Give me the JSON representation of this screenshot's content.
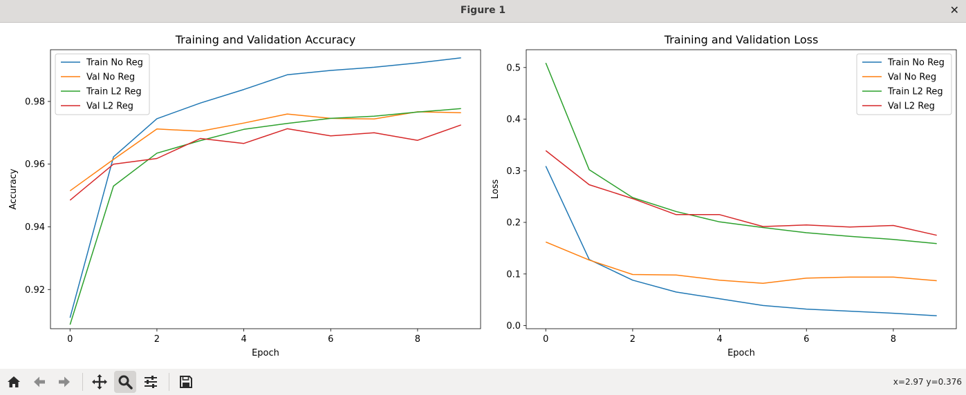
{
  "window": {
    "title": "Figure 1",
    "close_label": "✕"
  },
  "toolbar": {
    "buttons": [
      {
        "name": "home-button",
        "icon": "home-icon"
      },
      {
        "name": "back-button",
        "icon": "arrow-left-icon"
      },
      {
        "name": "forward-button",
        "icon": "arrow-right-icon"
      },
      {
        "name": "pan-button",
        "icon": "move-icon"
      },
      {
        "name": "zoom-button",
        "icon": "zoom-icon"
      },
      {
        "name": "configure-button",
        "icon": "sliders-icon"
      },
      {
        "name": "save-button",
        "icon": "save-icon"
      }
    ],
    "status": "x=2.97 y=0.376"
  },
  "colors": {
    "blue": "#1f77b4",
    "orange": "#ff7f0e",
    "green": "#2ca02c",
    "red": "#d62728"
  },
  "chart_data": [
    {
      "type": "line",
      "title": "Training and Validation Accuracy",
      "xlabel": "Epoch",
      "ylabel": "Accuracy",
      "xlim": [
        -0.45,
        9.45
      ],
      "ylim": [
        0.9075,
        0.9965
      ],
      "xticks": [
        0,
        2,
        4,
        6,
        8
      ],
      "yticks": [
        0.92,
        0.94,
        0.96,
        0.98
      ],
      "ytick_labels": [
        "0.92",
        "0.94",
        "0.96",
        "0.98"
      ],
      "legend": "upper left",
      "x": [
        0,
        1,
        2,
        3,
        4,
        5,
        6,
        7,
        8,
        9
      ],
      "series": [
        {
          "name": "Train No Reg",
          "color": "#1f77b4",
          "values": [
            0.911,
            0.9623,
            0.9745,
            0.9795,
            0.9838,
            0.9885,
            0.9899,
            0.9909,
            0.9923,
            0.9939
          ]
        },
        {
          "name": "Val No Reg",
          "color": "#ff7f0e",
          "values": [
            0.9515,
            0.9615,
            0.9712,
            0.9705,
            0.9731,
            0.976,
            0.9746,
            0.9744,
            0.9767,
            0.9764
          ]
        },
        {
          "name": "Train L2 Reg",
          "color": "#2ca02c",
          "values": [
            0.9088,
            0.953,
            0.9635,
            0.9675,
            0.9711,
            0.973,
            0.9746,
            0.9753,
            0.9766,
            0.9777
          ]
        },
        {
          "name": "Val L2 Reg",
          "color": "#d62728",
          "values": [
            0.9485,
            0.96,
            0.9618,
            0.9682,
            0.9666,
            0.9713,
            0.969,
            0.97,
            0.9676,
            0.9725
          ]
        }
      ]
    },
    {
      "type": "line",
      "title": "Training and Validation Loss",
      "xlabel": "Epoch",
      "ylabel": "Loss",
      "xlim": [
        -0.45,
        9.45
      ],
      "ylim": [
        -0.006,
        0.5345
      ],
      "xticks": [
        0,
        2,
        4,
        6,
        8
      ],
      "yticks": [
        0.0,
        0.1,
        0.2,
        0.3,
        0.4,
        0.5
      ],
      "ytick_labels": [
        "0.0",
        "0.1",
        "0.2",
        "0.3",
        "0.4",
        "0.5"
      ],
      "legend": "upper right",
      "x": [
        0,
        1,
        2,
        3,
        4,
        5,
        6,
        7,
        8,
        9
      ],
      "series": [
        {
          "name": "Train No Reg",
          "color": "#1f77b4",
          "values": [
            0.309,
            0.128,
            0.088,
            0.065,
            0.052,
            0.039,
            0.032,
            0.028,
            0.024,
            0.019
          ]
        },
        {
          "name": "Val No Reg",
          "color": "#ff7f0e",
          "values": [
            0.162,
            0.127,
            0.099,
            0.098,
            0.088,
            0.082,
            0.092,
            0.094,
            0.094,
            0.087
          ]
        },
        {
          "name": "Train L2 Reg",
          "color": "#2ca02c",
          "values": [
            0.509,
            0.302,
            0.248,
            0.221,
            0.201,
            0.19,
            0.18,
            0.173,
            0.167,
            0.159
          ]
        },
        {
          "name": "Val L2 Reg",
          "color": "#d62728",
          "values": [
            0.339,
            0.273,
            0.246,
            0.215,
            0.215,
            0.192,
            0.195,
            0.191,
            0.194,
            0.175
          ]
        }
      ]
    }
  ]
}
